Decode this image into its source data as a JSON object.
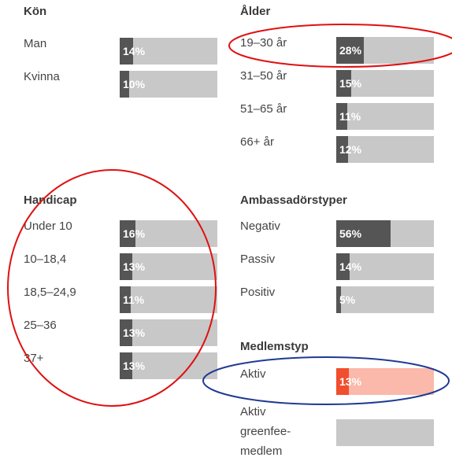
{
  "xlim": [
    0,
    100
  ],
  "bar_color": "#555555",
  "track_color": "#c8c8c8",
  "groups": [
    {
      "title": "Kön",
      "rows": [
        {
          "label": "Man",
          "value": 14,
          "value_label": "14%"
        },
        {
          "label": "Kvinna",
          "value": 10,
          "value_label": "10%"
        }
      ]
    },
    {
      "title": "Ålder",
      "rows": [
        {
          "label": "19–30 år",
          "value": 28,
          "value_label": "28%"
        },
        {
          "label": "31–50 år",
          "value": 15,
          "value_label": "15%"
        },
        {
          "label": "51–65 år",
          "value": 11,
          "value_label": "11%"
        },
        {
          "label": "66+ år",
          "value": 12,
          "value_label": "12%"
        }
      ]
    },
    {
      "title": "Handicap",
      "rows": [
        {
          "label": "Under 10",
          "value": 16,
          "value_label": "16%"
        },
        {
          "label": "10–18,4",
          "value": 13,
          "value_label": "13%"
        },
        {
          "label": "18,5–24,9",
          "value": 11,
          "value_label": "11%"
        },
        {
          "label": "25–36",
          "value": 13,
          "value_label": "13%"
        },
        {
          "label": "37+",
          "value": 13,
          "value_label": "13%"
        }
      ]
    },
    {
      "title": "Ambassadörstyper",
      "rows": [
        {
          "label": "Negativ",
          "value": 56,
          "value_label": "56%"
        },
        {
          "label": "Passiv",
          "value": 14,
          "value_label": "14%"
        },
        {
          "label": "Positiv",
          "value": 5,
          "value_label": "5%"
        }
      ]
    },
    {
      "title": "Medlemstyp",
      "rows": [
        {
          "label": "Aktiv",
          "value": 13,
          "value_label": "13%",
          "bar_color": "#f04e2e",
          "track_color": "#fbb9ab"
        },
        {
          "label": "Aktiv greenfee-medlem",
          "value": null
        }
      ]
    }
  ]
}
